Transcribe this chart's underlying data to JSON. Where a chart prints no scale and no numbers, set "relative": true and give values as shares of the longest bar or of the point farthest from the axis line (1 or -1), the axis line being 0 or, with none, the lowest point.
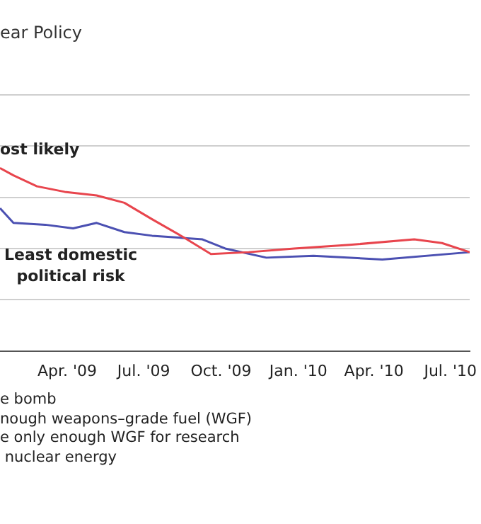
{
  "chart_data": {
    "type": "line",
    "title": "ear Policy",
    "relative": true,
    "grid": "y",
    "legend": false,
    "marker": "none",
    "xlim": [
      "2009-01-11",
      "2010-07-24"
    ],
    "xticks": [
      {
        "value": "2009-04-01",
        "label": "Apr. '09"
      },
      {
        "value": "2009-07-01",
        "label": "Jul. '09"
      },
      {
        "value": "2009-10-01",
        "label": "Oct. '09"
      },
      {
        "value": "2010-01-01",
        "label": "Jan. '10"
      },
      {
        "value": "2010-04-01",
        "label": "Apr. '10"
      },
      {
        "value": "2010-07-01",
        "label": "Jul. '10"
      }
    ],
    "series": [
      {
        "color": "#e8454d",
        "x": [
          "2009-01-11",
          "2009-01-27",
          "2009-02-24",
          "2009-03-29",
          "2009-05-06",
          "2009-06-08",
          "2009-07-11",
          "2009-08-18",
          "2009-09-19",
          "2009-11-03",
          "2009-12-27",
          "2010-03-03",
          "2010-05-19",
          "2010-06-21",
          "2010-07-24"
        ],
        "values": [
          1,
          0.96,
          0.9,
          0.87,
          0.85,
          0.81,
          0.72,
          0.62,
          0.53,
          0.54,
          0.56,
          0.58,
          0.61,
          0.59,
          0.54
        ]
      },
      {
        "color": "#4b50b2",
        "x": [
          "2009-01-11",
          "2009-01-27",
          "2009-03-06",
          "2009-04-08",
          "2009-05-06",
          "2009-06-08",
          "2009-07-11",
          "2009-09-09",
          "2009-10-06",
          "2009-11-24",
          "2010-01-19",
          "2010-04-11",
          "2010-07-24"
        ],
        "values": [
          0.78,
          0.7,
          0.69,
          0.67,
          0.7,
          0.65,
          0.63,
          0.61,
          0.56,
          0.51,
          0.52,
          0.5,
          0.54
        ]
      }
    ],
    "annotations": [
      "ost likely",
      "Least domestic\npolitical risk",
      "e bomb",
      "nough weapons–grade fuel (WGF)",
      "e only enough WGF for research",
      " nuclear energy"
    ]
  }
}
